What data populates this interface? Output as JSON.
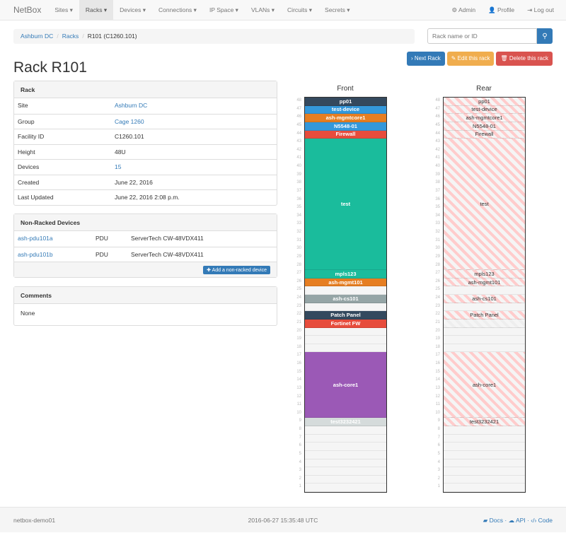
{
  "nav": {
    "brand": "NetBox",
    "items": [
      "Sites",
      "Racks",
      "Devices",
      "Connections",
      "IP Space",
      "VLANs",
      "Circuits",
      "Secrets"
    ],
    "active": "Racks",
    "right": [
      {
        "icon": "gear-icon",
        "glyph": "⚙",
        "label": "Admin"
      },
      {
        "icon": "user-icon",
        "glyph": "👤",
        "label": "Profile"
      },
      {
        "icon": "logout-icon",
        "glyph": "⇥",
        "label": "Log out"
      }
    ]
  },
  "breadcrumb": [
    "Ashburn DC",
    "Racks",
    "R101 (C1260.101)"
  ],
  "search": {
    "placeholder": "Rack name or ID",
    "icon": "search-icon"
  },
  "buttons": {
    "next": "Next Rack",
    "edit": "Edit this rack",
    "delete": "Delete this rack"
  },
  "colors": {
    "primary": "#337ab7",
    "warning": "#f0ad4e",
    "danger": "#d9534f"
  },
  "title": "Rack R101",
  "rack_panel": {
    "heading": "Rack",
    "rows": [
      {
        "k": "Site",
        "v": "Ashburn DC",
        "link": true
      },
      {
        "k": "Group",
        "v": "Cage 1260",
        "link": true
      },
      {
        "k": "Facility ID",
        "v": "C1260.101"
      },
      {
        "k": "Height",
        "v": "48U"
      },
      {
        "k": "Devices",
        "v": "15",
        "link": true
      },
      {
        "k": "Created",
        "v": "June 22, 2016"
      },
      {
        "k": "Last Updated",
        "v": "June 22, 2016 2:08 p.m."
      }
    ]
  },
  "nonracked": {
    "heading": "Non-Racked Devices",
    "rows": [
      [
        "ash-pdu101a",
        "PDU",
        "ServerTech CW-48VDX411"
      ],
      [
        "ash-pdu101b",
        "PDU",
        "ServerTech CW-48VDX411"
      ]
    ],
    "add": "Add a non-racked device"
  },
  "comments": {
    "heading": "Comments",
    "body": "None"
  },
  "elevation": {
    "front_title": "Front",
    "rear_title": "Rear",
    "units": 48,
    "devices": [
      {
        "name": "pp01",
        "u": 48,
        "h": 1,
        "color": "#34495e"
      },
      {
        "name": "test-device",
        "u": 47,
        "h": 1,
        "color": "#3498db"
      },
      {
        "name": "ash-mgmtcore1",
        "u": 46,
        "h": 1,
        "color": "#e67e22"
      },
      {
        "name": "N5548-01",
        "u": 45,
        "h": 1,
        "color": "#3498db"
      },
      {
        "name": "Firewall",
        "u": 44,
        "h": 1,
        "color": "#e74c3c"
      },
      {
        "name": "test",
        "u": 28,
        "h": 16,
        "color": "#1abc9c"
      },
      {
        "name": "mpls123",
        "u": 27,
        "h": 1,
        "color": "#1abc9c"
      },
      {
        "name": "ash-mgmt101",
        "u": 26,
        "h": 1,
        "color": "#e67e22"
      },
      {
        "name": "ash-cs101",
        "u": 24,
        "h": 1,
        "color": "#95a5a6"
      },
      {
        "name": "Patch Panel",
        "u": 22,
        "h": 1,
        "color": "#34495e"
      },
      {
        "name": "Fortinet FW",
        "u": 21,
        "h": 1,
        "color": "#e74c3c",
        "half_depth": true
      },
      {
        "name": "ash-core1",
        "u": 10,
        "h": 8,
        "color": "#9b59b6"
      },
      {
        "name": "test3232421",
        "u": 9,
        "h": 1,
        "color": "#d5dbdb"
      }
    ]
  },
  "footer": {
    "host": "netbox-demo01",
    "time": "2016-06-27 15:35:48 UTC",
    "links": [
      "Docs",
      "API",
      "Code"
    ]
  }
}
